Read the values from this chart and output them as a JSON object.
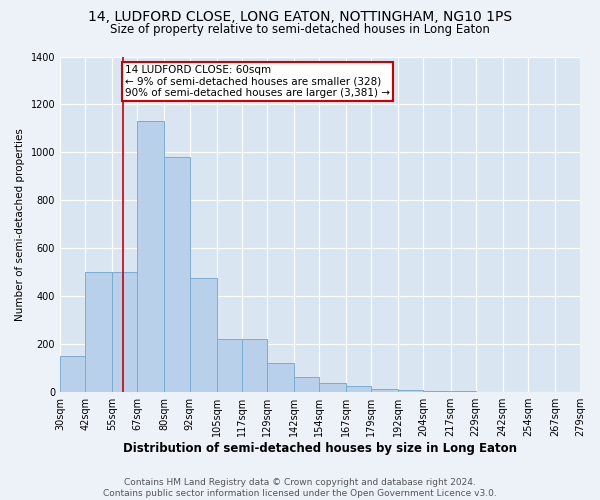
{
  "title": "14, LUDFORD CLOSE, LONG EATON, NOTTINGHAM, NG10 1PS",
  "subtitle": "Size of property relative to semi-detached houses in Long Eaton",
  "xlabel": "Distribution of semi-detached houses by size in Long Eaton",
  "ylabel": "Number of semi-detached properties",
  "footer1": "Contains HM Land Registry data © Crown copyright and database right 2024.",
  "footer2": "Contains public sector information licensed under the Open Government Licence v3.0.",
  "bins": [
    30,
    42,
    55,
    67,
    80,
    92,
    105,
    117,
    129,
    142,
    154,
    167,
    179,
    192,
    204,
    217,
    229,
    242,
    254,
    267,
    279
  ],
  "values": [
    150,
    500,
    500,
    1130,
    980,
    475,
    220,
    220,
    120,
    65,
    40,
    25,
    15,
    8,
    5,
    3,
    2,
    1,
    1,
    1
  ],
  "bar_color": "#b8d0ea",
  "bar_edge_color": "#7aadd4",
  "property_size": 60,
  "property_label": "14 LUDFORD CLOSE: 60sqm",
  "pct_smaller": 9,
  "count_smaller": 328,
  "pct_larger": 90,
  "count_larger": 3381,
  "vline_color": "#cc0000",
  "annotation_box_color": "#cc0000",
  "ylim": [
    0,
    1400
  ],
  "background_color": "#edf2f9",
  "plot_bg_color": "#d9e6f2",
  "grid_color": "#ffffff",
  "title_fontsize": 10,
  "subtitle_fontsize": 8.5,
  "xlabel_fontsize": 8.5,
  "ylabel_fontsize": 7.5,
  "tick_fontsize": 7,
  "annotation_fontsize": 7.5,
  "footer_fontsize": 6.5
}
